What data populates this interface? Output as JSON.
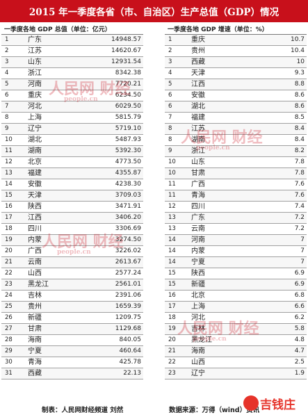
{
  "title": "2015 年一季度各省（市、自治区）生产总值（GDP）情况",
  "gdp_table": {
    "header": "一季度各地 GDP 总值（单位：亿元）",
    "rows": [
      {
        "rank": "1",
        "province": "广东",
        "value": "14948.57"
      },
      {
        "rank": "2",
        "province": "江苏",
        "value": "14620.67"
      },
      {
        "rank": "3",
        "province": "山东",
        "value": "12931.54"
      },
      {
        "rank": "4",
        "province": "浙江",
        "value": "8342.38"
      },
      {
        "rank": "5",
        "province": "河南",
        "value": "7720.21"
      },
      {
        "rank": "6",
        "province": "重庆",
        "value": "6234.50"
      },
      {
        "rank": "7",
        "province": "河北",
        "value": "6029.50"
      },
      {
        "rank": "8",
        "province": "上海",
        "value": "5815.79"
      },
      {
        "rank": "9",
        "province": "辽宁",
        "value": "5719.10"
      },
      {
        "rank": "10",
        "province": "湖北",
        "value": "5487.93"
      },
      {
        "rank": "11",
        "province": "湖南",
        "value": "5392.30"
      },
      {
        "rank": "12",
        "province": "北京",
        "value": "4773.50"
      },
      {
        "rank": "13",
        "province": "福建",
        "value": "4355.87"
      },
      {
        "rank": "14",
        "province": "安徽",
        "value": "4238.30"
      },
      {
        "rank": "15",
        "province": "天津",
        "value": "3709.03"
      },
      {
        "rank": "16",
        "province": "陕西",
        "value": "3471.91"
      },
      {
        "rank": "17",
        "province": "江西",
        "value": "3406.20"
      },
      {
        "rank": "18",
        "province": "四川",
        "value": "3306.69"
      },
      {
        "rank": "19",
        "province": "内蒙",
        "value": "3274.50"
      },
      {
        "rank": "20",
        "province": "广西",
        "value": "3226.02"
      },
      {
        "rank": "21",
        "province": "云南",
        "value": "2613.67"
      },
      {
        "rank": "22",
        "province": "山西",
        "value": "2577.24"
      },
      {
        "rank": "23",
        "province": "黑龙江",
        "value": "2561.01"
      },
      {
        "rank": "24",
        "province": "吉林",
        "value": "2391.06"
      },
      {
        "rank": "25",
        "province": "贵州",
        "value": "1659.39"
      },
      {
        "rank": "26",
        "province": "新疆",
        "value": "1209.75"
      },
      {
        "rank": "27",
        "province": "甘肃",
        "value": "1129.68"
      },
      {
        "rank": "28",
        "province": "海南",
        "value": "840.05"
      },
      {
        "rank": "29",
        "province": "宁夏",
        "value": "460.64"
      },
      {
        "rank": "30",
        "province": "青海",
        "value": "425.78"
      },
      {
        "rank": "31",
        "province": "西藏",
        "value": "22.13"
      }
    ]
  },
  "growth_table": {
    "header": "一季度各地 GDP 增速（单位：%）",
    "rows": [
      {
        "rank": "1",
        "province": "重庆",
        "value": "10.7"
      },
      {
        "rank": "2",
        "province": "贵州",
        "value": "10.4"
      },
      {
        "rank": "3",
        "province": "西藏",
        "value": "10"
      },
      {
        "rank": "4",
        "province": "天津",
        "value": "9.3"
      },
      {
        "rank": "5",
        "province": "江西",
        "value": "8.8"
      },
      {
        "rank": "6",
        "province": "安徽",
        "value": "8.6"
      },
      {
        "rank": "6",
        "province": "湖北",
        "value": "8.6"
      },
      {
        "rank": "7",
        "province": "福建",
        "value": "8.5"
      },
      {
        "rank": "8",
        "province": "江苏",
        "value": "8.4"
      },
      {
        "rank": "8",
        "province": "湖南",
        "value": "8.4"
      },
      {
        "rank": "9",
        "province": "浙江",
        "value": "8.2"
      },
      {
        "rank": "10",
        "province": "山东",
        "value": "7.8"
      },
      {
        "rank": "10",
        "province": "甘肃",
        "value": "7.8"
      },
      {
        "rank": "11",
        "province": "广西",
        "value": "7.6"
      },
      {
        "rank": "11",
        "province": "青海",
        "value": "7.6"
      },
      {
        "rank": "12",
        "province": "四川",
        "value": "7.4"
      },
      {
        "rank": "13",
        "province": "广东",
        "value": "7.2"
      },
      {
        "rank": "13",
        "province": "云南",
        "value": "7.2"
      },
      {
        "rank": "14",
        "province": "河南",
        "value": "7"
      },
      {
        "rank": "14",
        "province": "内蒙",
        "value": "7"
      },
      {
        "rank": "14",
        "province": "宁夏",
        "value": "7"
      },
      {
        "rank": "15",
        "province": "陕西",
        "value": "6.9"
      },
      {
        "rank": "15",
        "province": "新疆",
        "value": "6.9"
      },
      {
        "rank": "16",
        "province": "北京",
        "value": "6.8"
      },
      {
        "rank": "17",
        "province": "上海",
        "value": "6.6"
      },
      {
        "rank": "18",
        "province": "河北",
        "value": "6.2"
      },
      {
        "rank": "19",
        "province": "吉林",
        "value": "5.8"
      },
      {
        "rank": "20",
        "province": "黑龙江",
        "value": "4.8"
      },
      {
        "rank": "21",
        "province": "海南",
        "value": "4.7"
      },
      {
        "rank": "22",
        "province": "山西",
        "value": "2.5"
      },
      {
        "rank": "23",
        "province": "辽宁",
        "value": "1.9"
      }
    ]
  },
  "footer": {
    "credit": "制表：人民网财经频道 刘然",
    "source": "数据来源：万得（wind）资讯"
  },
  "watermark": {
    "text": "人民网 财经",
    "sub": "people.cn"
  },
  "logo": {
    "text": "吉钱庄"
  },
  "colors": {
    "title_bg": "#c8101b",
    "watermark": "#c8101b",
    "logo": "#e6332a"
  }
}
